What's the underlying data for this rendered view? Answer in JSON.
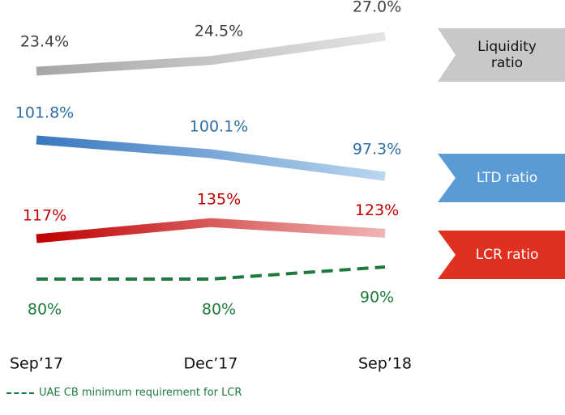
{
  "chart_data": {
    "type": "line",
    "categories": [
      "Sep’17",
      "Dec’17",
      "Sep’18"
    ],
    "series": [
      {
        "name": "Liquidity ratio",
        "color": "#a6a6a6",
        "light": "#e3e3e3",
        "text_color": "#404040",
        "tag_color": "#c8c8c8",
        "values": [
          23.4,
          24.5,
          27.0
        ],
        "value_labels": [
          "23.4%",
          "24.5%",
          "27.0%"
        ]
      },
      {
        "name": "LTD ratio",
        "color": "#3a78bf",
        "light": "#b9d6ef",
        "text_color": "#2e6da4",
        "tag_color": "#5b9bd5",
        "values": [
          101.8,
          100.1,
          97.3
        ],
        "value_labels": [
          "101.8%",
          "100.1%",
          "97.3%"
        ]
      },
      {
        "name": "LCR ratio",
        "color": "#c00000",
        "light": "#f0b4b4",
        "text_color": "#c00000",
        "tag_color": "#e03020",
        "values": [
          117,
          135,
          123
        ],
        "value_labels": [
          "117%",
          "135%",
          "123%"
        ]
      },
      {
        "name": "UAE CB minimum requirement for LCR",
        "color": "#1e7a3c",
        "text_color": "#1e7a3c",
        "style": "dashed",
        "values": [
          80,
          80,
          90
        ],
        "value_labels": [
          "80%",
          "80%",
          "90%"
        ]
      }
    ]
  }
}
